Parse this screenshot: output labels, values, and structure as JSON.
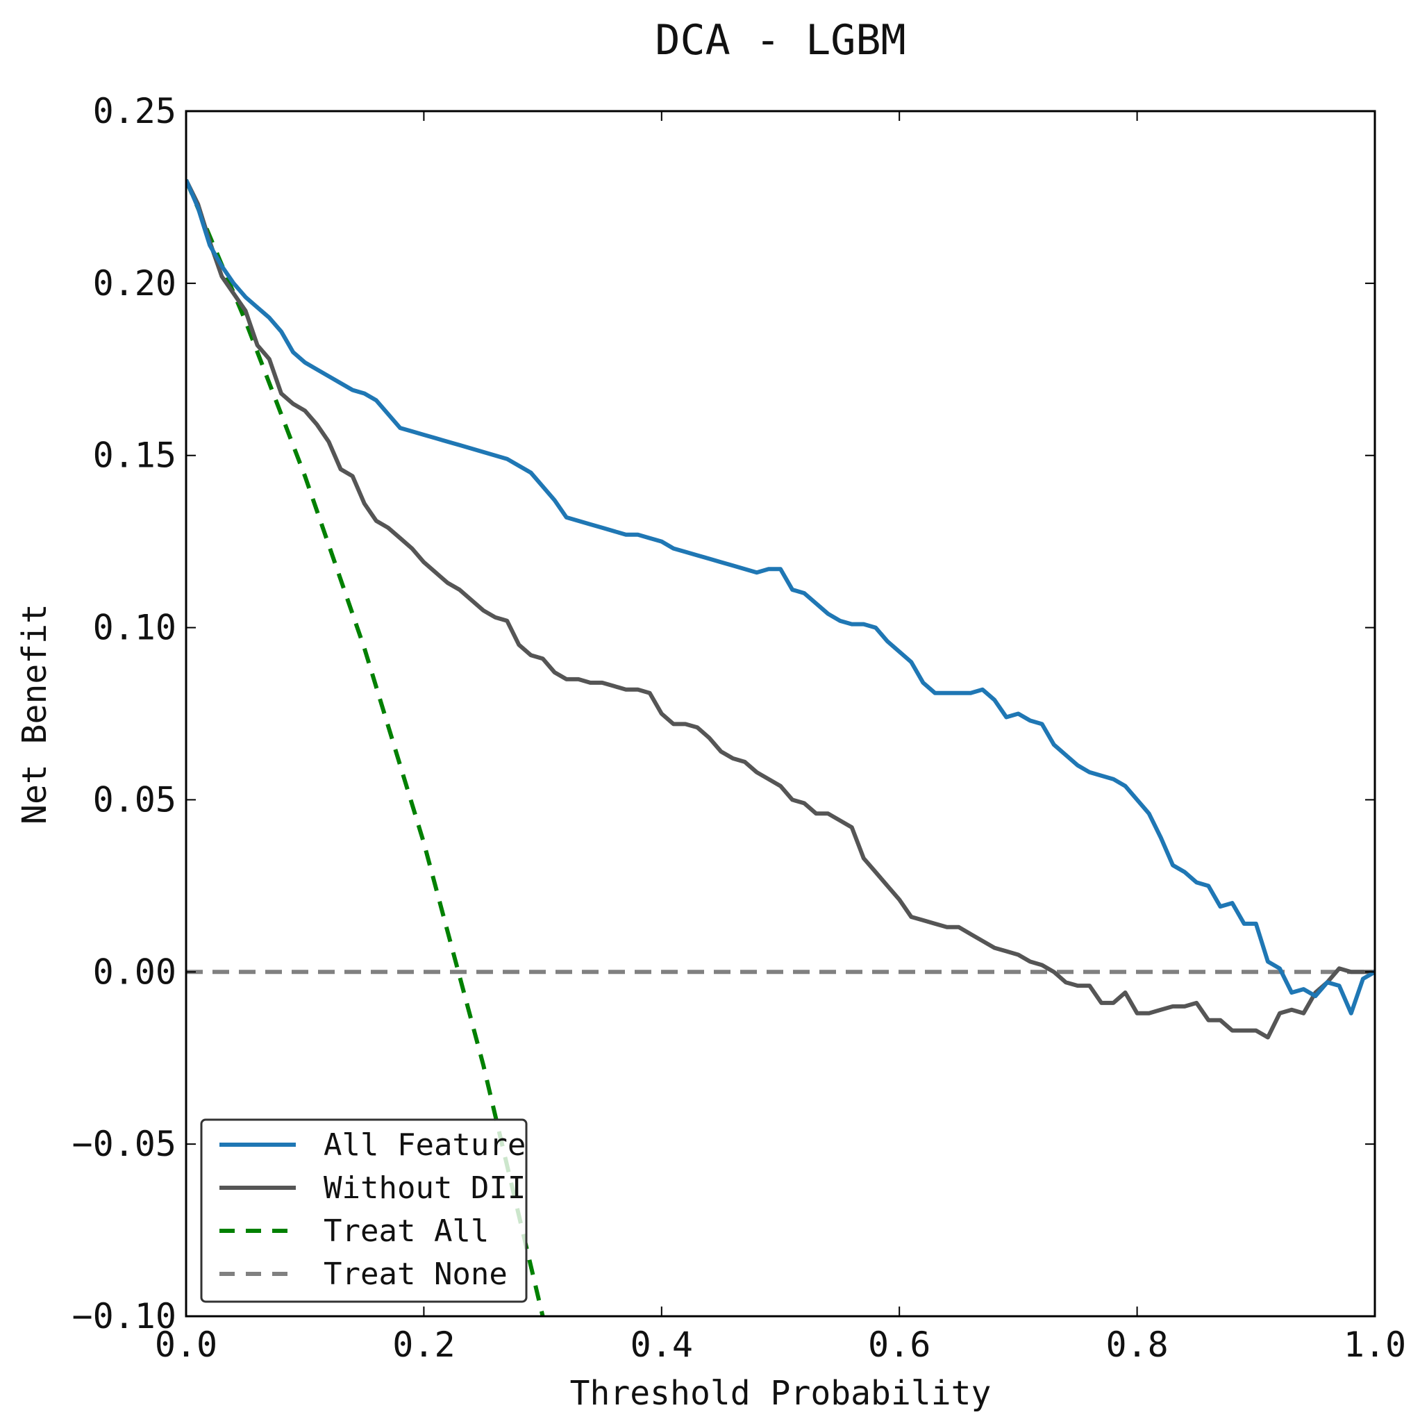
{
  "chart_data": {
    "type": "line",
    "title": "DCA - LGBM",
    "xlabel": "Threshold Probability",
    "ylabel": "Net Benefit",
    "xlim": [
      0.0,
      1.0
    ],
    "ylim": [
      -0.1,
      0.25
    ],
    "xticks": [
      0.0,
      0.2,
      0.4,
      0.6,
      0.8,
      1.0
    ],
    "xtick_labels": [
      "0.0",
      "0.2",
      "0.4",
      "0.6",
      "0.8",
      "1.0"
    ],
    "yticks": [
      -0.1,
      -0.05,
      0.0,
      0.05,
      0.1,
      0.15,
      0.2,
      0.25
    ],
    "ytick_labels": [
      "−0.10",
      "−0.05",
      "0.00",
      "0.05",
      "0.10",
      "0.15",
      "0.20",
      "0.25"
    ],
    "grid": false,
    "legend_position": "lower-left",
    "series": [
      {
        "name": "All Feature",
        "color": "#1f77b4",
        "style": "solid",
        "x": [
          0.0,
          0.01,
          0.02,
          0.03,
          0.04,
          0.05,
          0.06,
          0.07,
          0.08,
          0.09,
          0.1,
          0.11,
          0.12,
          0.13,
          0.14,
          0.15,
          0.16,
          0.17,
          0.18,
          0.19,
          0.2,
          0.21,
          0.22,
          0.23,
          0.24,
          0.25,
          0.26,
          0.27,
          0.28,
          0.29,
          0.3,
          0.31,
          0.32,
          0.33,
          0.34,
          0.35,
          0.36,
          0.37,
          0.38,
          0.39,
          0.4,
          0.41,
          0.42,
          0.43,
          0.44,
          0.45,
          0.46,
          0.47,
          0.48,
          0.49,
          0.5,
          0.51,
          0.52,
          0.53,
          0.54,
          0.55,
          0.56,
          0.57,
          0.58,
          0.59,
          0.6,
          0.61,
          0.62,
          0.63,
          0.64,
          0.65,
          0.66,
          0.67,
          0.68,
          0.69,
          0.7,
          0.71,
          0.72,
          0.73,
          0.74,
          0.75,
          0.76,
          0.77,
          0.78,
          0.79,
          0.8,
          0.81,
          0.82,
          0.83,
          0.84,
          0.85,
          0.86,
          0.87,
          0.88,
          0.89,
          0.9,
          0.91,
          0.92,
          0.93,
          0.94,
          0.95,
          0.96,
          0.97,
          0.98,
          0.99,
          1.0
        ],
        "y": [
          0.23,
          0.222,
          0.211,
          0.205,
          0.2,
          0.196,
          0.193,
          0.19,
          0.186,
          0.18,
          0.177,
          0.175,
          0.173,
          0.171,
          0.169,
          0.168,
          0.166,
          0.162,
          0.158,
          0.157,
          0.156,
          0.155,
          0.154,
          0.153,
          0.152,
          0.151,
          0.15,
          0.149,
          0.147,
          0.145,
          0.141,
          0.137,
          0.132,
          0.131,
          0.13,
          0.129,
          0.128,
          0.127,
          0.127,
          0.126,
          0.125,
          0.123,
          0.122,
          0.121,
          0.12,
          0.119,
          0.118,
          0.117,
          0.116,
          0.117,
          0.117,
          0.111,
          0.11,
          0.107,
          0.104,
          0.102,
          0.101,
          0.101,
          0.1,
          0.096,
          0.093,
          0.09,
          0.084,
          0.081,
          0.081,
          0.081,
          0.081,
          0.082,
          0.079,
          0.074,
          0.075,
          0.073,
          0.072,
          0.066,
          0.063,
          0.06,
          0.058,
          0.057,
          0.056,
          0.054,
          0.05,
          0.046,
          0.039,
          0.031,
          0.029,
          0.026,
          0.025,
          0.019,
          0.02,
          0.014,
          0.014,
          0.003,
          0.001,
          -0.006,
          -0.005,
          -0.007,
          -0.003,
          -0.004,
          -0.012,
          -0.002,
          0.0
        ]
      },
      {
        "name": "Without DII",
        "color": "#555555",
        "style": "solid",
        "x": [
          0.0,
          0.01,
          0.02,
          0.03,
          0.04,
          0.05,
          0.06,
          0.07,
          0.08,
          0.09,
          0.1,
          0.11,
          0.12,
          0.13,
          0.14,
          0.15,
          0.16,
          0.17,
          0.18,
          0.19,
          0.2,
          0.21,
          0.22,
          0.23,
          0.24,
          0.25,
          0.26,
          0.27,
          0.28,
          0.29,
          0.3,
          0.31,
          0.32,
          0.33,
          0.34,
          0.35,
          0.36,
          0.37,
          0.38,
          0.39,
          0.4,
          0.41,
          0.42,
          0.43,
          0.44,
          0.45,
          0.46,
          0.47,
          0.48,
          0.49,
          0.5,
          0.51,
          0.52,
          0.53,
          0.54,
          0.55,
          0.56,
          0.57,
          0.58,
          0.59,
          0.6,
          0.61,
          0.62,
          0.63,
          0.64,
          0.65,
          0.66,
          0.67,
          0.68,
          0.69,
          0.7,
          0.71,
          0.72,
          0.73,
          0.74,
          0.75,
          0.76,
          0.77,
          0.78,
          0.79,
          0.8,
          0.81,
          0.82,
          0.83,
          0.84,
          0.85,
          0.86,
          0.87,
          0.88,
          0.89,
          0.9,
          0.91,
          0.92,
          0.93,
          0.94,
          0.95,
          0.96,
          0.97,
          0.98,
          0.99,
          1.0
        ],
        "y": [
          0.23,
          0.223,
          0.212,
          0.202,
          0.197,
          0.192,
          0.182,
          0.178,
          0.168,
          0.165,
          0.163,
          0.159,
          0.154,
          0.146,
          0.144,
          0.136,
          0.131,
          0.129,
          0.126,
          0.123,
          0.119,
          0.116,
          0.113,
          0.111,
          0.108,
          0.105,
          0.103,
          0.102,
          0.095,
          0.092,
          0.091,
          0.087,
          0.085,
          0.085,
          0.084,
          0.084,
          0.083,
          0.082,
          0.082,
          0.081,
          0.075,
          0.072,
          0.072,
          0.071,
          0.068,
          0.064,
          0.062,
          0.061,
          0.058,
          0.056,
          0.054,
          0.05,
          0.049,
          0.046,
          0.046,
          0.044,
          0.042,
          0.033,
          0.029,
          0.025,
          0.021,
          0.016,
          0.015,
          0.014,
          0.013,
          0.013,
          0.011,
          0.009,
          0.007,
          0.006,
          0.005,
          0.003,
          0.002,
          0.0,
          -0.003,
          -0.004,
          -0.004,
          -0.009,
          -0.009,
          -0.006,
          -0.012,
          -0.012,
          -0.011,
          -0.01,
          -0.01,
          -0.009,
          -0.014,
          -0.014,
          -0.017,
          -0.017,
          -0.017,
          -0.019,
          -0.012,
          -0.011,
          -0.012,
          -0.006,
          -0.003,
          0.001,
          0.0,
          0.0,
          0.0
        ]
      },
      {
        "name": "Treat All",
        "color": "#008000",
        "style": "dashed",
        "x": [
          0.0,
          0.05,
          0.1,
          0.15,
          0.2,
          0.25,
          0.3
        ],
        "y": [
          0.23,
          0.189,
          0.144,
          0.094,
          0.0375,
          -0.027,
          -0.1
        ]
      },
      {
        "name": "Treat None",
        "color": "#808080",
        "style": "dashed",
        "x": [
          0.0,
          1.0
        ],
        "y": [
          0.0,
          0.0
        ]
      }
    ]
  }
}
